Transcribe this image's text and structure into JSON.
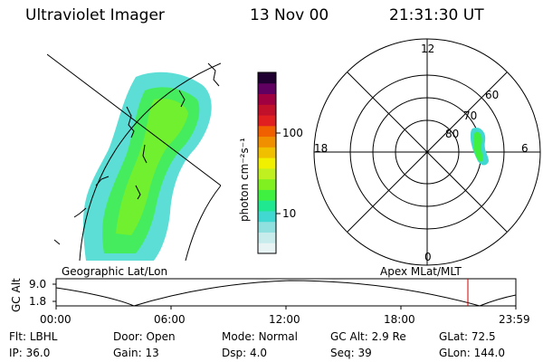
{
  "header": {
    "title": "Ultraviolet Imager",
    "date": "13 Nov 00",
    "time": "21:31:30 UT"
  },
  "colorbar": {
    "unit_label": "photon cm⁻²s⁻¹",
    "ticks": [
      {
        "label": "100",
        "value": 100
      },
      {
        "label": "10",
        "value": 10
      }
    ],
    "colors": [
      "#e8f4f4",
      "#c8ecec",
      "#90e0e0",
      "#40d8d0",
      "#20e890",
      "#40f040",
      "#80f020",
      "#c0f020",
      "#f0f000",
      "#f0c000",
      "#f09000",
      "#f06000",
      "#e02020",
      "#c0102a",
      "#a00040",
      "#600060",
      "#200030"
    ]
  },
  "geo_panel": {
    "label": "Geographic Lat/Lon"
  },
  "polar_panel": {
    "label": "Apex MLat/MLT",
    "mlt_labels": {
      "top": "12",
      "left": "18",
      "right": "6",
      "bottom": "0"
    },
    "lat_labels": [
      "60",
      "70",
      "80"
    ]
  },
  "altitude_plot": {
    "ylabel": "GC Alt",
    "yticks": [
      "9.0",
      "1.8"
    ],
    "xticks": [
      "00:00",
      "06:00",
      "12:00",
      "18:00",
      "23:59"
    ],
    "current_marker_color": "#cc0000"
  },
  "footer": {
    "row1": [
      {
        "label": "Flt:",
        "value": "LBHL"
      },
      {
        "label": "Door:",
        "value": "Open"
      },
      {
        "label": "Mode:",
        "value": "Normal"
      },
      {
        "label": "GC Alt:",
        "value": "2.9 Re"
      },
      {
        "label": "GLat:",
        "value": "72.5"
      }
    ],
    "row2": [
      {
        "label": "IP:",
        "value": "36.0"
      },
      {
        "label": "Gain:",
        "value": "13"
      },
      {
        "label": "Dsp:",
        "value": "4.0"
      },
      {
        "label": "Seq:",
        "value": "39"
      },
      {
        "label": "GLon:",
        "value": "144.0"
      }
    ]
  }
}
